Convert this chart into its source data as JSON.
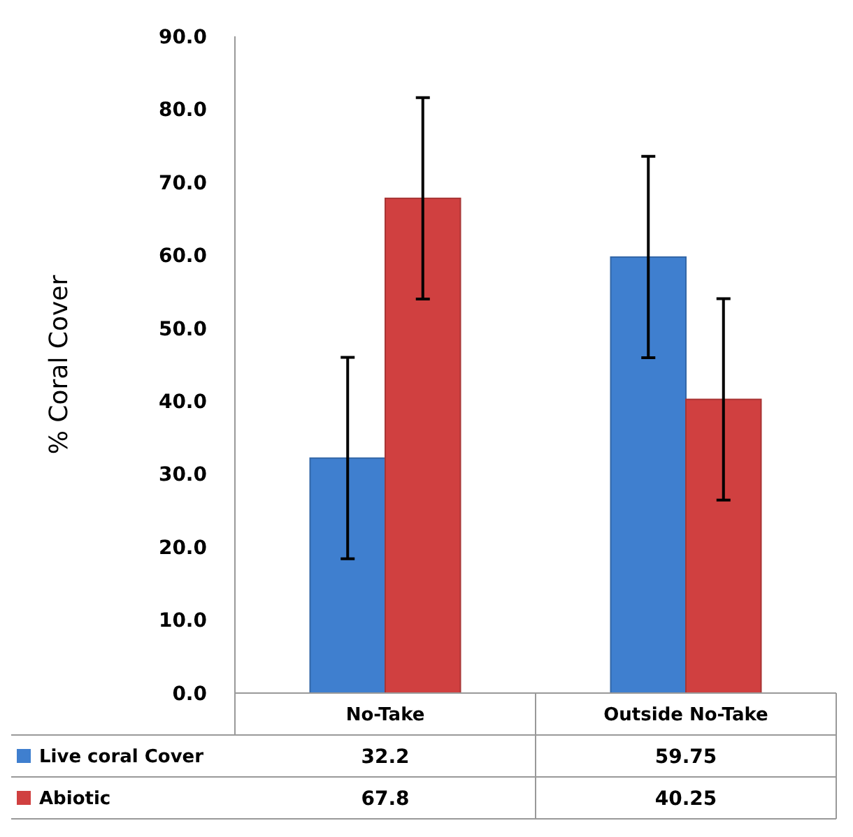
{
  "chart_data": {
    "type": "bar",
    "ylabel": "% Coral Cover",
    "categories": [
      "No-Take",
      "Outside No-Take"
    ],
    "series": [
      {
        "name": "Live coral Cover",
        "color": "#3f7fcf",
        "values": [
          32.2,
          59.75
        ],
        "errors": [
          13.8,
          13.8
        ]
      },
      {
        "name": "Abiotic",
        "color": "#d04040",
        "values": [
          67.8,
          40.25
        ],
        "errors": [
          13.8,
          13.8
        ]
      }
    ],
    "ylim": [
      0,
      90
    ],
    "yticks": [
      {
        "value": 0,
        "label": "0.0"
      },
      {
        "value": 10,
        "label": "10.0"
      },
      {
        "value": 20,
        "label": "20.0"
      },
      {
        "value": 30,
        "label": "30.0"
      },
      {
        "value": 40,
        "label": "40.0"
      },
      {
        "value": 50,
        "label": "50.0"
      },
      {
        "value": 60,
        "label": "60.0"
      },
      {
        "value": 70,
        "label": "70.0"
      },
      {
        "value": 80,
        "label": "80.0"
      },
      {
        "value": 90,
        "label": "90.0"
      }
    ],
    "grid": false,
    "legend": "bottom left",
    "data_labels": true
  }
}
